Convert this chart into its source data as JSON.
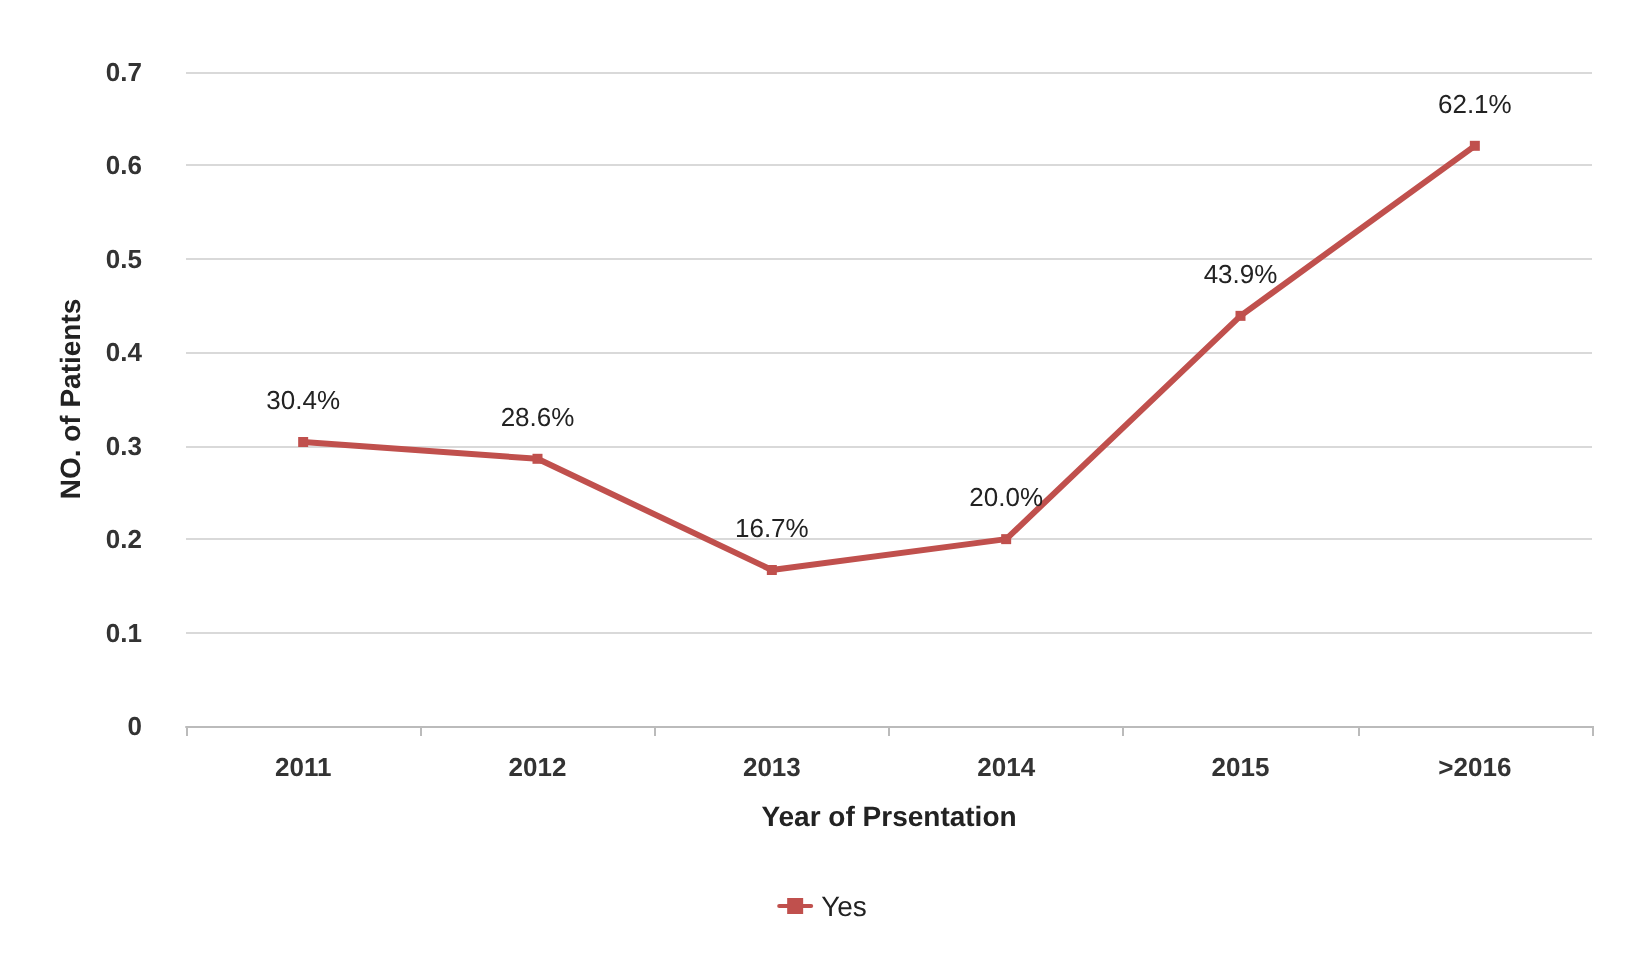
{
  "chart_data": {
    "type": "line",
    "xlabel": "Year of Prsentation",
    "ylabel": "NO. of Patients",
    "categories": [
      "2011",
      "2012",
      "2013",
      "2014",
      "2015",
      ">2016"
    ],
    "series": [
      {
        "name": "Yes",
        "color": "#c0504d",
        "values": [
          0.304,
          0.286,
          0.167,
          0.2,
          0.439,
          0.621
        ],
        "value_labels": [
          "30.4%",
          "28.6%",
          "16.7%",
          "20.0%",
          "43.9%",
          "62.1%"
        ]
      }
    ],
    "ylim": [
      0,
      0.7
    ],
    "yticks": [
      0,
      0.1,
      0.2,
      0.3,
      0.4,
      0.5,
      0.6,
      0.7
    ],
    "grid": "y",
    "legend": "bottom",
    "marker": "square",
    "line_style": "solid"
  }
}
